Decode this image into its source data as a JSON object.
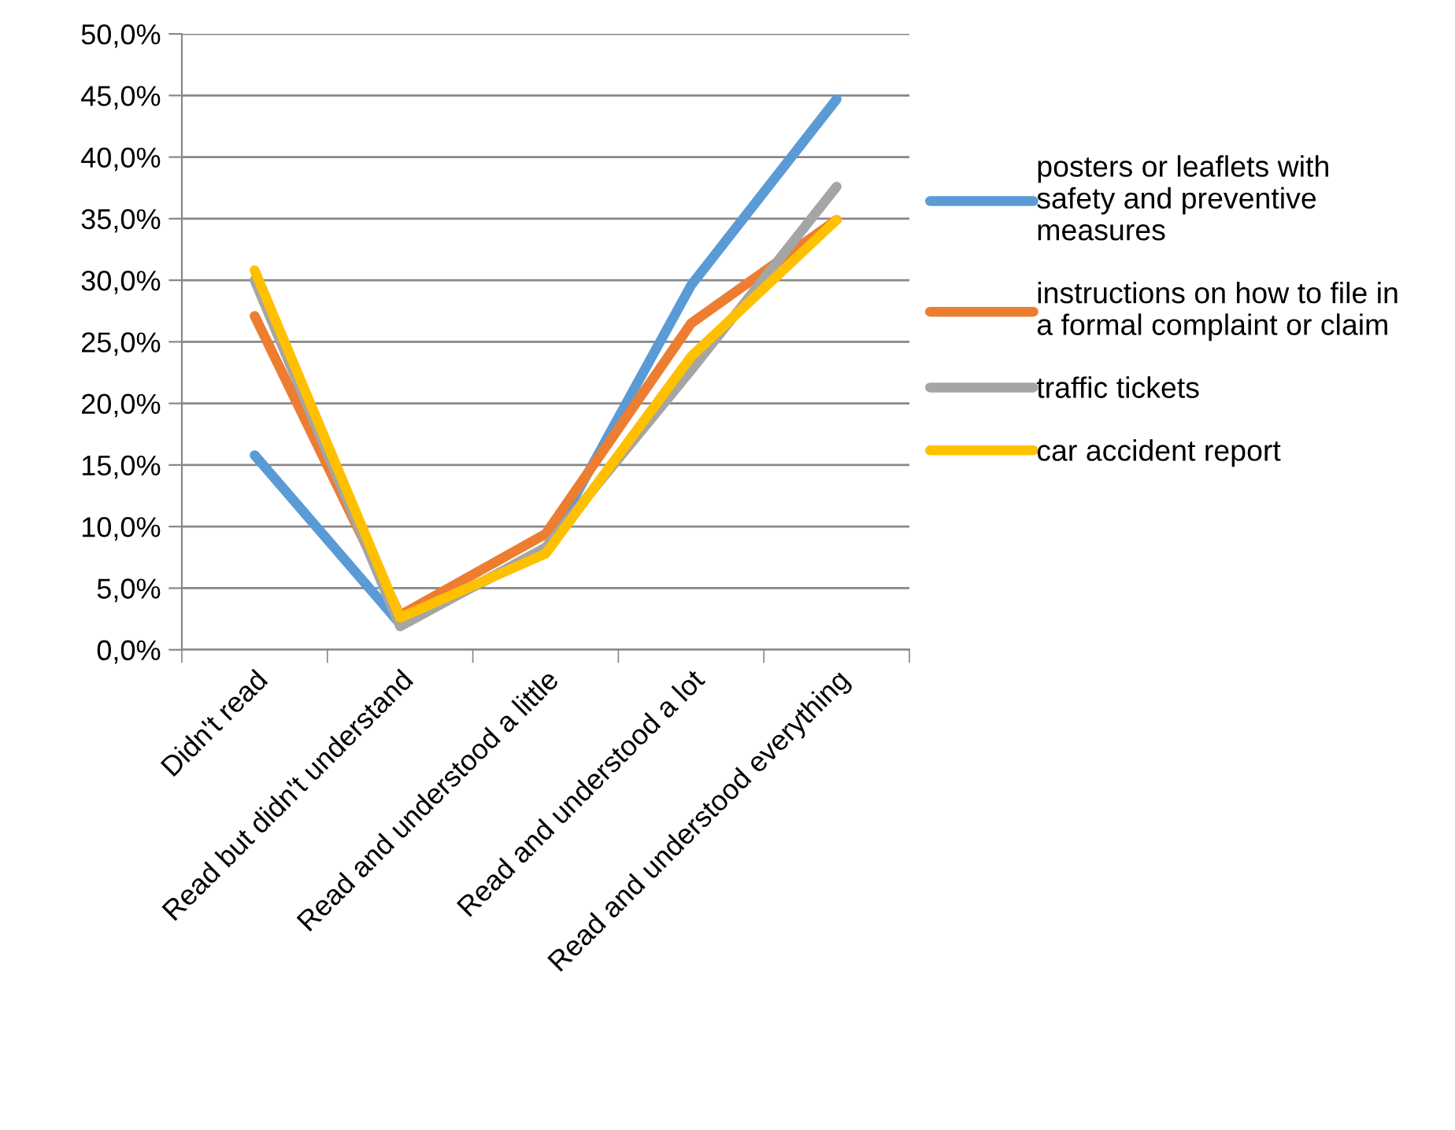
{
  "chart_data": {
    "type": "line",
    "categories": [
      "Didn't read",
      "Read but didn't understand",
      "Read and understood a little",
      "Read and understood a lot",
      "Read and understood everything"
    ],
    "series": [
      {
        "name": "posters or leaflets with safety and preventive measures",
        "color": "#5b9bd5",
        "values": [
          15.8,
          2.1,
          8.1,
          29.6,
          44.7
        ]
      },
      {
        "name": "instructions on how to file in a formal complaint or claim",
        "color": "#ed7d31",
        "values": [
          27.1,
          2.8,
          9.4,
          26.5,
          34.9
        ]
      },
      {
        "name": "traffic tickets",
        "color": "#a5a5a5",
        "values": [
          30.0,
          1.9,
          8.3,
          22.7,
          37.6
        ]
      },
      {
        "name": "car accident report",
        "color": "#ffc000",
        "values": [
          30.8,
          2.6,
          7.8,
          23.8,
          34.9
        ]
      }
    ],
    "ylim": [
      0,
      50
    ],
    "yticks": [
      {
        "value": 0,
        "label": "0,0%"
      },
      {
        "value": 5,
        "label": "5,0%"
      },
      {
        "value": 10,
        "label": "10,0%"
      },
      {
        "value": 15,
        "label": "15,0%"
      },
      {
        "value": 20,
        "label": "20,0%"
      },
      {
        "value": 25,
        "label": "25,0%"
      },
      {
        "value": 30,
        "label": "30,0%"
      },
      {
        "value": 35,
        "label": "35,0%"
      },
      {
        "value": 40,
        "label": "40,0%"
      },
      {
        "value": 45,
        "label": "45,0%"
      },
      {
        "value": 50,
        "label": "50,0%"
      }
    ],
    "grid": "y",
    "legend": "right",
    "marker": "none",
    "line_style": "solid"
  }
}
